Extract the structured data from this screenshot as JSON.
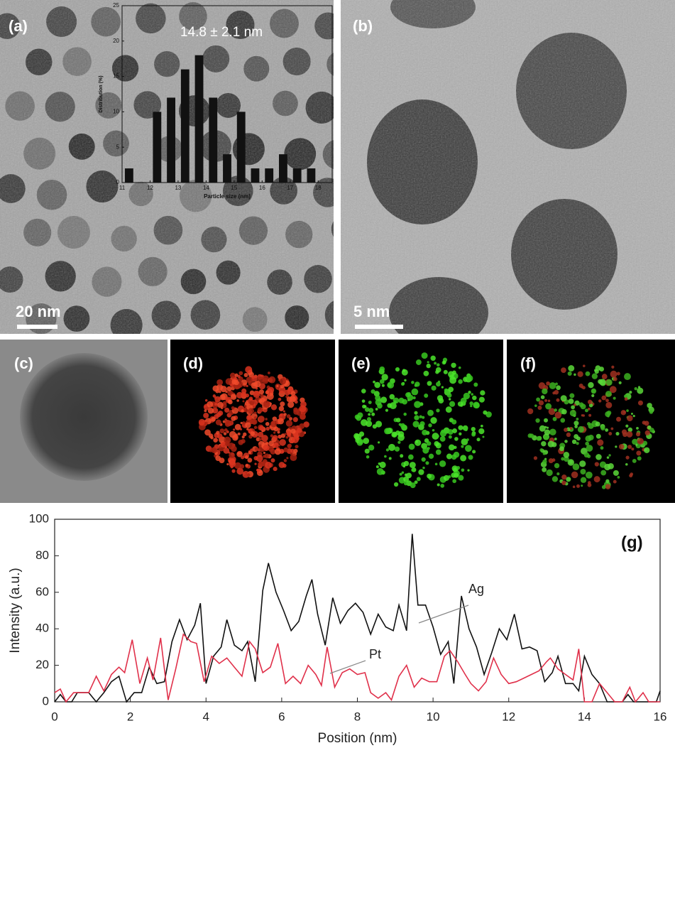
{
  "panels": {
    "labels": [
      "(a)",
      "(b)",
      "(c)",
      "(d)",
      "(e)",
      "(f)"
    ],
    "scale_bars": [
      "20 nm",
      "5 nm"
    ]
  },
  "chart_data": [
    {
      "type": "bar",
      "annotation": "14.8 ± 2.1 nm",
      "x_label": "Particle size (nm)",
      "y_label": "Distribution (%)",
      "x": [
        11.25,
        12.25,
        12.75,
        13.25,
        13.75,
        14.25,
        14.75,
        15.25,
        15.75,
        16.25,
        16.75,
        17.25,
        17.75
      ],
      "values": [
        2,
        10,
        12,
        16,
        18,
        12,
        4,
        10,
        2,
        2,
        4,
        2,
        2
      ],
      "color": "#111111",
      "xlim": [
        11,
        18.5
      ],
      "xticks": [
        11,
        12,
        13,
        14,
        15,
        16,
        17,
        18
      ],
      "ylim": [
        0,
        25
      ],
      "yticks": [
        0,
        5,
        10,
        15,
        20,
        25
      ]
    },
    {
      "type": "line",
      "panel_label": "(g)",
      "x_label": "Position (nm)",
      "y_label": "Intensity (a.u.)",
      "series": [
        {
          "name": "Ag",
          "color": "#111111",
          "x": [
            0,
            0.15,
            0.3,
            0.45,
            0.6,
            0.9,
            1.1,
            1.3,
            1.5,
            1.7,
            1.9,
            2.1,
            2.3,
            2.5,
            2.7,
            2.9,
            3.1,
            3.3,
            3.5,
            3.7,
            3.85,
            4.0,
            4.2,
            4.4,
            4.55,
            4.75,
            4.95,
            5.1,
            5.3,
            5.5,
            5.65,
            5.85,
            6.05,
            6.25,
            6.45,
            6.65,
            6.8,
            6.95,
            7.15,
            7.35,
            7.55,
            7.75,
            7.95,
            8.15,
            8.35,
            8.55,
            8.75,
            8.95,
            9.1,
            9.3,
            9.45,
            9.6,
            9.8,
            10.0,
            10.2,
            10.4,
            10.55,
            10.75,
            10.95,
            11.15,
            11.35,
            11.55,
            11.75,
            11.95,
            12.15,
            12.35,
            12.55,
            12.75,
            12.95,
            13.15,
            13.3,
            13.5,
            13.7,
            13.85,
            14.0,
            14.2,
            14.4,
            14.6,
            14.8,
            15.0,
            15.15,
            15.3,
            15.5,
            15.7,
            15.9,
            16.0
          ],
          "values": [
            0,
            4,
            0,
            0,
            5,
            5,
            0,
            5,
            11,
            14,
            0,
            5,
            5,
            19,
            10,
            11,
            33,
            45,
            34,
            42,
            54,
            10,
            25,
            30,
            45,
            31,
            28,
            33,
            11,
            61,
            76,
            60,
            50,
            39,
            44,
            58,
            67,
            48,
            31,
            57,
            43,
            50,
            54,
            49,
            37,
            48,
            41,
            39,
            53,
            39,
            92,
            53,
            53,
            41,
            26,
            33,
            10,
            58,
            40,
            30,
            15,
            27,
            40,
            34,
            48,
            29,
            30,
            28,
            11,
            16,
            25,
            10,
            10,
            6,
            25,
            15,
            10,
            0,
            0,
            0,
            4,
            0,
            0,
            0,
            0,
            6
          ]
        },
        {
          "name": "Pt",
          "color": "#e0304a",
          "x": [
            0,
            0.15,
            0.3,
            0.5,
            0.7,
            0.9,
            1.1,
            1.3,
            1.5,
            1.7,
            1.85,
            2.05,
            2.25,
            2.45,
            2.6,
            2.8,
            3.0,
            3.2,
            3.4,
            3.6,
            3.75,
            3.95,
            4.15,
            4.35,
            4.55,
            4.75,
            4.95,
            5.15,
            5.3,
            5.5,
            5.7,
            5.9,
            6.1,
            6.3,
            6.5,
            6.7,
            6.9,
            7.05,
            7.2,
            7.4,
            7.6,
            7.8,
            8.0,
            8.2,
            8.35,
            8.55,
            8.75,
            8.9,
            9.1,
            9.3,
            9.5,
            9.7,
            9.9,
            10.1,
            10.3,
            10.45,
            10.65,
            10.85,
            11.0,
            11.2,
            11.4,
            11.6,
            11.8,
            12.0,
            12.2,
            12.4,
            12.6,
            12.8,
            13.0,
            13.1,
            13.3,
            13.5,
            13.7,
            13.85,
            14.0,
            14.2,
            14.4,
            14.6,
            14.8,
            15.0,
            15.2,
            15.35,
            15.55,
            15.7,
            15.9,
            16.0
          ],
          "values": [
            5,
            7,
            0,
            5,
            5,
            5,
            14,
            6,
            15,
            19,
            16,
            34,
            10,
            24,
            12,
            35,
            1,
            18,
            37,
            33,
            32,
            11,
            25,
            21,
            24,
            19,
            14,
            33,
            29,
            16,
            19,
            32,
            10,
            14,
            10,
            20,
            15,
            9,
            30,
            8,
            16,
            18,
            15,
            16,
            5,
            2,
            5,
            1,
            14,
            20,
            8,
            13,
            11,
            11,
            25,
            28,
            22,
            15,
            10,
            6,
            11,
            24,
            15,
            10,
            11,
            13,
            15,
            17,
            22,
            24,
            18,
            15,
            12,
            29,
            0,
            0,
            10,
            5,
            0,
            0,
            8,
            0,
            5,
            0,
            0,
            0
          ]
        }
      ],
      "xlim": [
        0,
        16
      ],
      "xticks": [
        0,
        2,
        4,
        6,
        8,
        10,
        12,
        14,
        16
      ],
      "ylim": [
        0,
        100
      ],
      "yticks": [
        0,
        20,
        40,
        60,
        80,
        100
      ]
    }
  ]
}
